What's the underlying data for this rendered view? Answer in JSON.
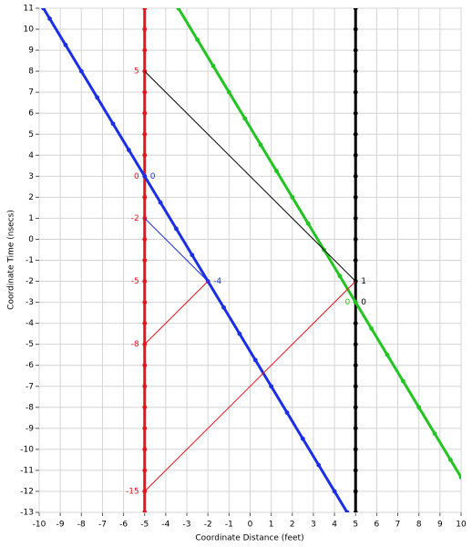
{
  "chart_data": {
    "type": "line",
    "xlabel": "Coordinate Distance (feet)",
    "ylabel": "Coordinate Time (nsecs)",
    "xlim": [
      -10,
      10
    ],
    "ylim": [
      -13,
      11
    ],
    "xticks": [
      -10,
      -9,
      -8,
      -7,
      -6,
      -5,
      -4,
      -3,
      -2,
      -1,
      0,
      1,
      2,
      3,
      4,
      5,
      6,
      7,
      8,
      9,
      10
    ],
    "yticks": [
      -13,
      -12,
      -11,
      -10,
      -9,
      -8,
      -7,
      -6,
      -5,
      -4,
      -3,
      -2,
      -1,
      0,
      1,
      2,
      3,
      4,
      5,
      6,
      7,
      8,
      9,
      10,
      11
    ],
    "grid": true,
    "series": [
      {
        "color": "#e8141b",
        "width": 3,
        "markers": true,
        "x": [
          -5,
          -5,
          -5,
          -5,
          -5,
          -5,
          -5,
          -5,
          -5,
          -5,
          -5,
          -5,
          -5,
          -5,
          -5,
          -5,
          -5,
          -5,
          -5,
          -5,
          -5,
          -5,
          -5,
          -5,
          -5
        ],
        "y": [
          11,
          10,
          9,
          8,
          7,
          6,
          5,
          4,
          3,
          2,
          1,
          0,
          -1,
          -2,
          -3,
          -4,
          -5,
          -6,
          -7,
          -8,
          -9,
          -10,
          -11,
          -12,
          -13
        ]
      },
      {
        "color": "#000000",
        "width": 3,
        "markers": true,
        "x": [
          5,
          5,
          5,
          5,
          5,
          5,
          5,
          5,
          5,
          5,
          5,
          5,
          5,
          5,
          5,
          5,
          5,
          5,
          5,
          5,
          5,
          5,
          5,
          5,
          5
        ],
        "y": [
          11,
          10,
          9,
          8,
          7,
          6,
          5,
          4,
          3,
          2,
          1,
          0,
          -1,
          -2,
          -3,
          -4,
          -5,
          -6,
          -7,
          -8,
          -9,
          -10,
          -11,
          -12,
          -13
        ]
      },
      {
        "color": "#1a2ee6",
        "width": 3,
        "markers": true,
        "x": [
          -9.8,
          -9.5,
          -8.75,
          -8,
          -7.25,
          -6.5,
          -5.75,
          -5,
          -4.25,
          -3.5,
          -2.75,
          -2,
          -1.25,
          -0.5,
          0.25,
          1,
          1.75,
          2.5,
          3.25,
          4,
          4.6
        ],
        "y": [
          11,
          10.5,
          9.25,
          8,
          6.75,
          5.5,
          4.25,
          3,
          1.75,
          0.5,
          -0.75,
          -2,
          -3.25,
          -4.5,
          -5.75,
          -7,
          -8.25,
          -9.5,
          -10.75,
          -12,
          -13
        ]
      },
      {
        "color": "#22c422",
        "width": 3,
        "markers": true,
        "x": [
          -3.4,
          -2.5,
          -1.75,
          -1,
          -0.25,
          0.5,
          1.25,
          2,
          2.75,
          3.5,
          4.25,
          5,
          5.75,
          6.5,
          7.25,
          8,
          8.75,
          9.5,
          10
        ],
        "y": [
          11,
          9.5,
          8.25,
          7,
          5.75,
          4.5,
          3.25,
          2,
          0.75,
          -0.5,
          -1.75,
          -3,
          -4.25,
          -5.5,
          -6.75,
          -8,
          -9.25,
          -10.5,
          -11.33
        ]
      },
      {
        "color": "#000000",
        "width": 1,
        "markers": false,
        "x": [
          -5,
          5
        ],
        "y": [
          8,
          -2
        ]
      },
      {
        "color": "#1a2ee6",
        "width": 1,
        "markers": false,
        "x": [
          -5,
          -2
        ],
        "y": [
          1,
          -2
        ]
      },
      {
        "color": "#e8141b",
        "width": 1,
        "markers": false,
        "x": [
          -5,
          -2
        ],
        "y": [
          -5,
          -2
        ]
      },
      {
        "color": "#e8141b",
        "width": 1,
        "markers": false,
        "x": [
          -5,
          5
        ],
        "y": [
          -12,
          -2
        ]
      }
    ],
    "annotations": [
      {
        "text": "5",
        "x": -5,
        "y": 8,
        "series": 0
      },
      {
        "text": "0",
        "x": -5,
        "y": 3,
        "series": 0
      },
      {
        "text": "-2",
        "x": -5,
        "y": 1,
        "series": 0
      },
      {
        "text": "-5",
        "x": -5,
        "y": -2,
        "series": 0
      },
      {
        "text": "-8",
        "x": -5,
        "y": -5,
        "series": 0
      },
      {
        "text": "-15",
        "x": -5,
        "y": -12,
        "series": 0
      },
      {
        "text": "0",
        "x": -5,
        "y": 3,
        "series": 2
      },
      {
        "text": "-4",
        "x": -2,
        "y": -2,
        "series": 2
      },
      {
        "text": "1",
        "x": 5,
        "y": -2,
        "series": 1
      },
      {
        "text": "0",
        "x": 5,
        "y": -3,
        "series": 1
      },
      {
        "text": "0",
        "x": 5,
        "y": -3,
        "series": 3
      }
    ]
  }
}
